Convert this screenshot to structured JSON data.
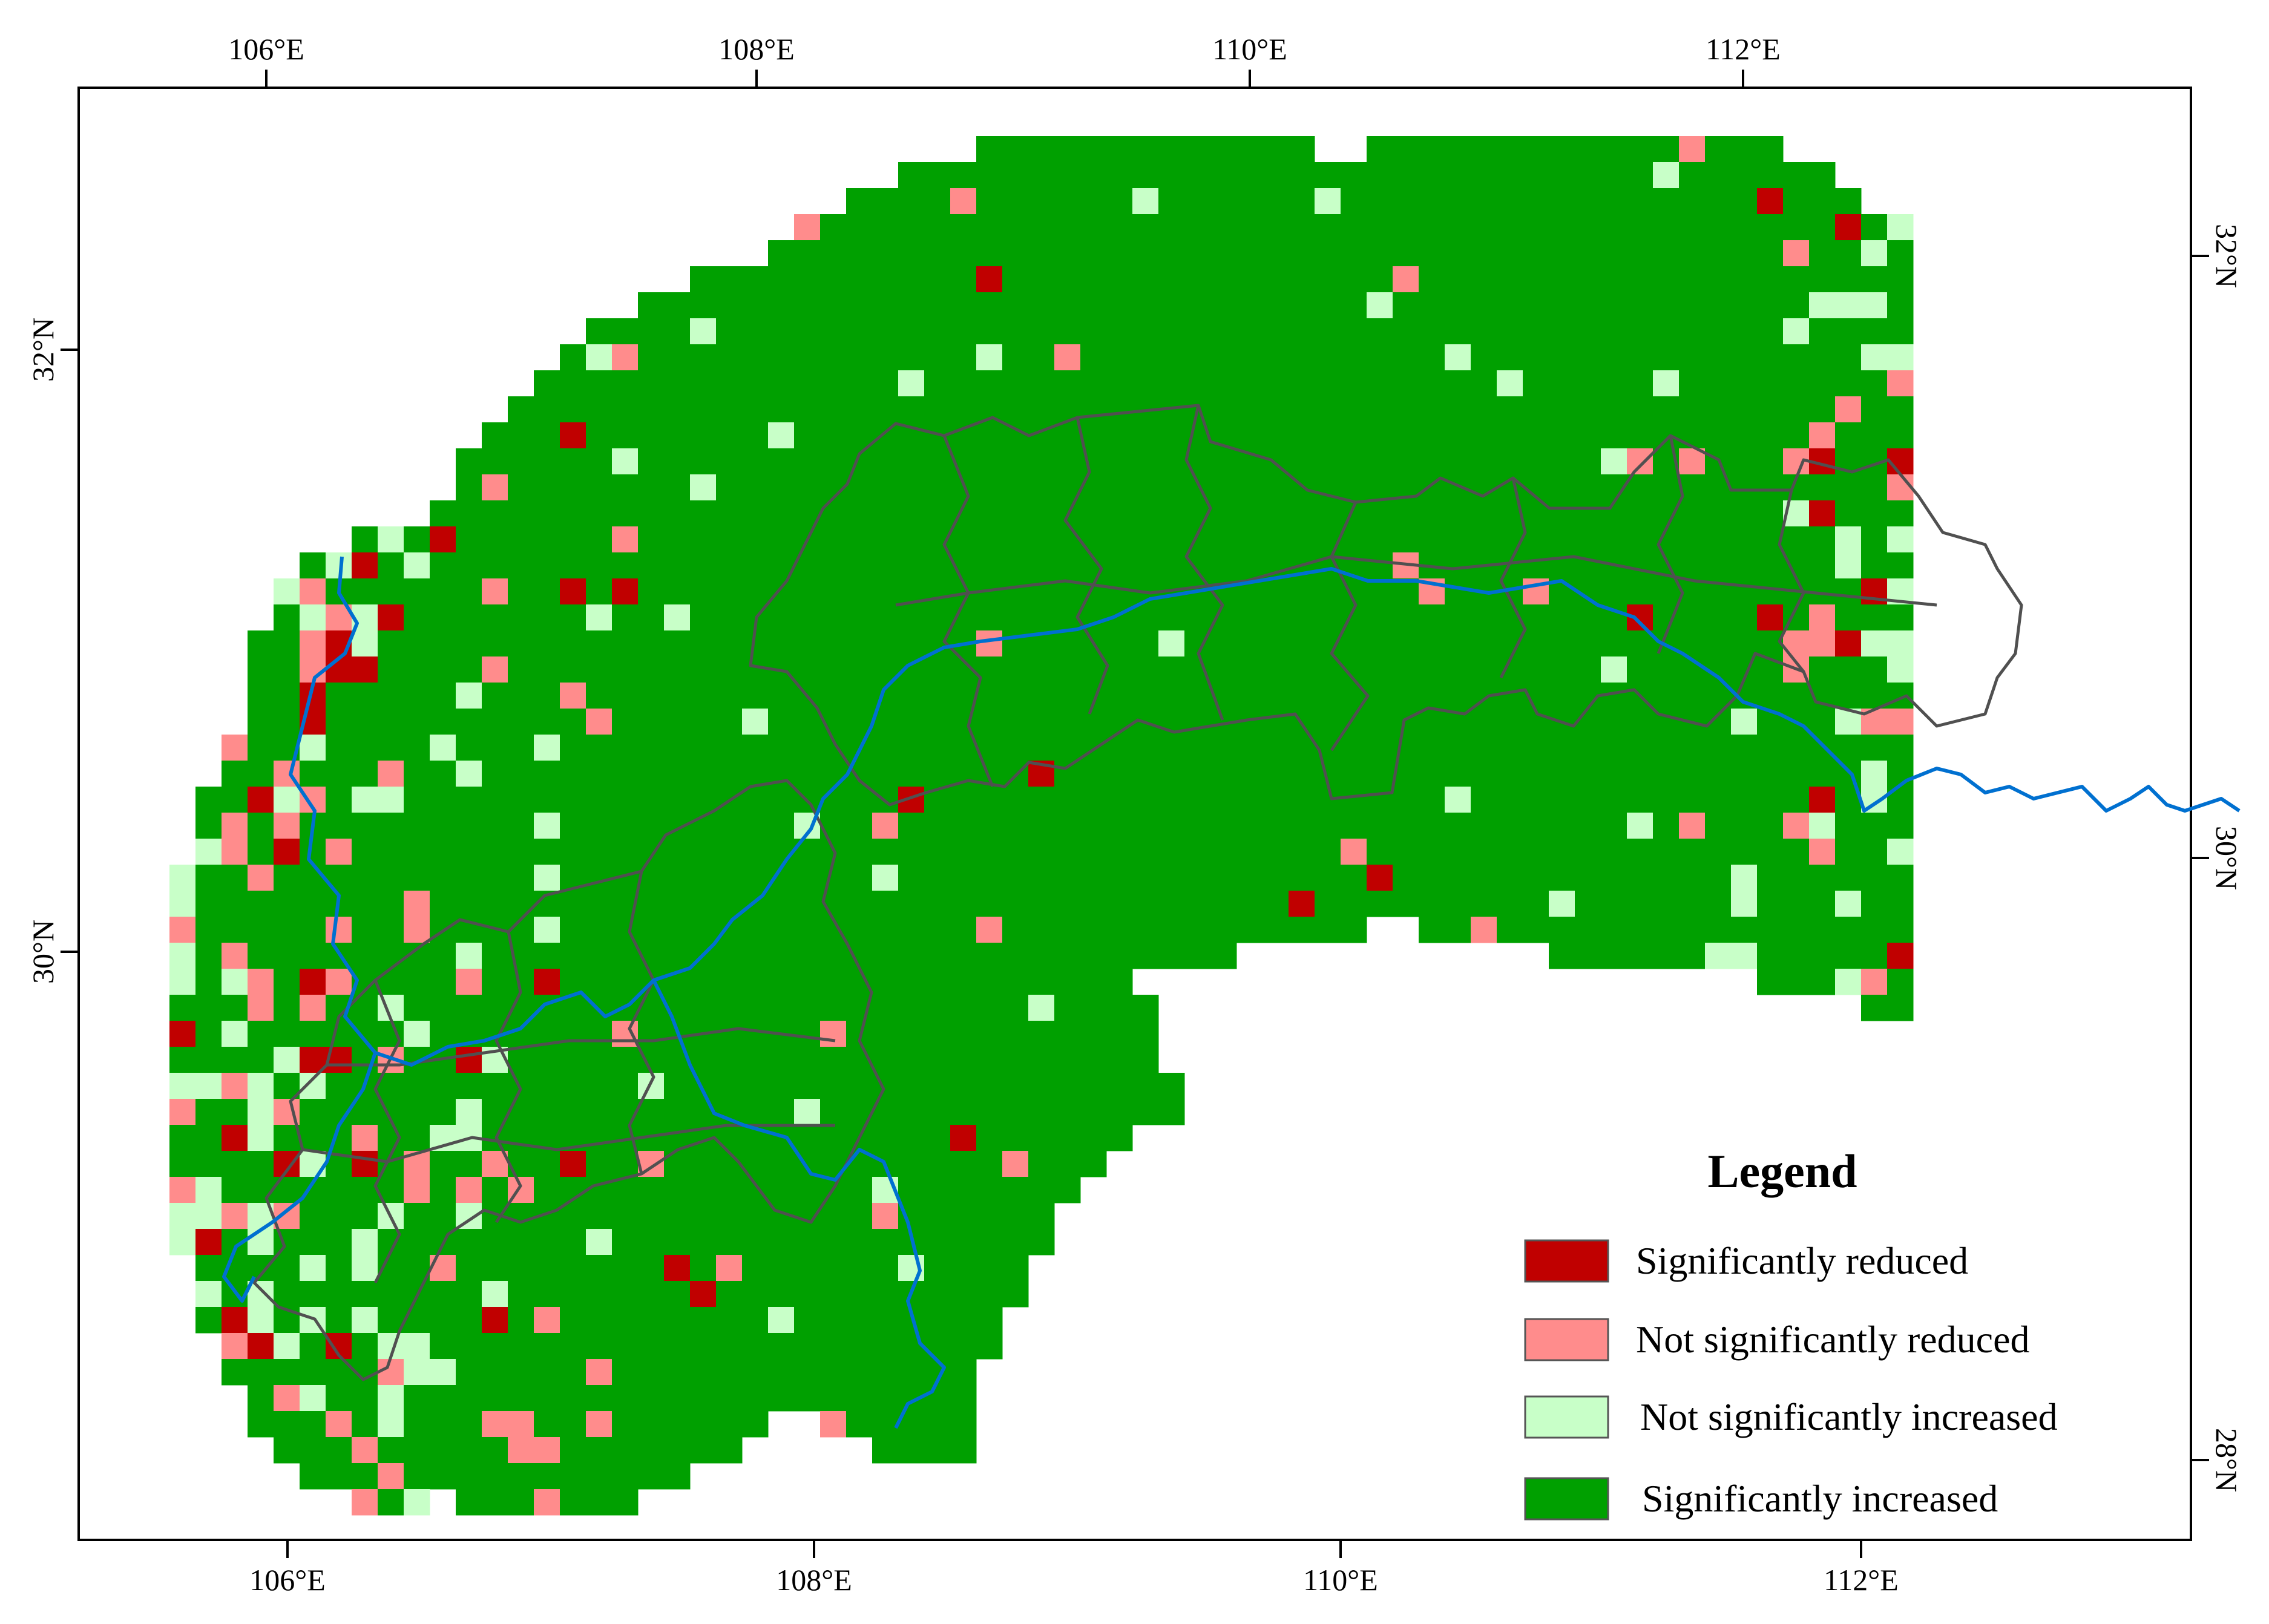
{
  "map": {
    "top_axis_labels": [
      "106°E",
      "108°E",
      "110°E",
      "112°E"
    ],
    "bottom_axis_labels": [
      "106°E",
      "108°E",
      "110°E",
      "112°E"
    ],
    "left_axis_labels": [
      "32°N",
      "30°N"
    ],
    "right_axis_labels": [
      "32°N",
      "30°N",
      "28°N"
    ],
    "colors": {
      "significantly_reduced": "#c00000",
      "not_significantly_reduced": "#ff8c8c",
      "not_significantly_increased": "#c8ffc8",
      "significantly_increased": "#00a000",
      "river": "#0070d0",
      "boundary": "#505050"
    }
  },
  "legend": {
    "title": "Legend",
    "items": [
      {
        "label": "Significantly reduced",
        "color": "#c00000"
      },
      {
        "label": "Not significantly reduced",
        "color": "#ff8c8c"
      },
      {
        "label": "Not significantly increased",
        "color": "#c8ffc8"
      },
      {
        "label": "Significantly increased",
        "color": "#00a000"
      }
    ]
  }
}
